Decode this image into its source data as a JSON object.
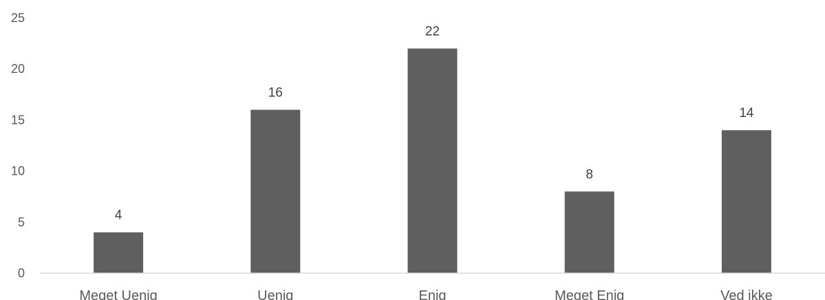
{
  "chart_data": {
    "type": "bar",
    "categories": [
      "Meget Uenig",
      "Uenig",
      "Enig",
      "Meget Enig",
      "Ved ikke"
    ],
    "values": [
      4,
      16,
      22,
      8,
      14
    ],
    "yticks": [
      "0",
      "5",
      "10",
      "15",
      "20",
      "25"
    ],
    "ylim": [
      0,
      25
    ],
    "title": "",
    "xlabel": "",
    "ylabel": "",
    "grid": false,
    "legend": "none",
    "bar_color": "#5f5f5f",
    "data_labels": true
  }
}
